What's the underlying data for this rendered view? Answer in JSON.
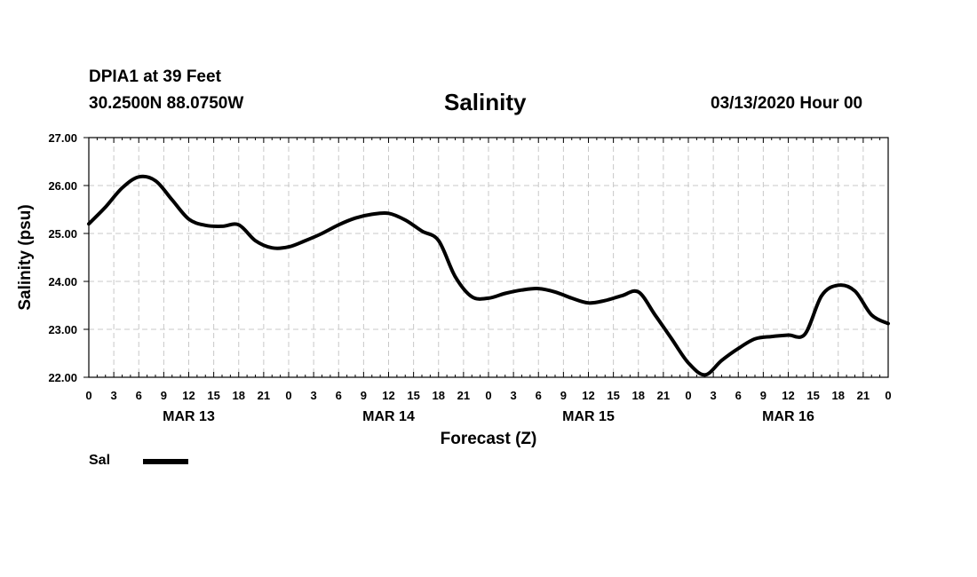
{
  "header": {
    "station": "DPIA1 at 39 Feet",
    "coords": "30.2500N 88.0750W",
    "title": "Salinity",
    "stamp": "03/13/2020 Hour 00"
  },
  "legend": {
    "label": "Sal"
  },
  "colors": {
    "line": "#000000",
    "grid": "#c8c8c8",
    "background": "#ffffff"
  },
  "chart_data": {
    "type": "line",
    "title": "Salinity",
    "xlabel": "Forecast (Z)",
    "ylabel": "Salinity (psu)",
    "ylim": [
      22.0,
      27.0
    ],
    "xlim": [
      0,
      96
    ],
    "y_ticks": [
      "27.00",
      "26.00",
      "25.00",
      "24.00",
      "23.00",
      "22.00"
    ],
    "y_tick_values": [
      27,
      26,
      25,
      24,
      23,
      22
    ],
    "x_tick_labels": [
      "0",
      "3",
      "6",
      "9",
      "12",
      "15",
      "18",
      "21",
      "0",
      "3",
      "6",
      "9",
      "12",
      "15",
      "18",
      "21",
      "0",
      "3",
      "6",
      "9",
      "12",
      "15",
      "18",
      "21",
      "0",
      "3",
      "6",
      "9",
      "12",
      "15",
      "18",
      "21",
      "0"
    ],
    "day_labels": [
      "MAR 13",
      "MAR 14",
      "MAR 15",
      "MAR 16"
    ],
    "grid": true,
    "legend_position": "bottom-left",
    "series": [
      {
        "name": "Sal",
        "x": [
          0,
          2,
          4,
          6,
          8,
          10,
          12,
          14,
          16,
          18,
          20,
          22,
          24,
          26,
          28,
          30,
          32,
          34,
          36,
          38,
          40,
          42,
          44,
          46,
          48,
          50,
          52,
          54,
          56,
          58,
          60,
          62,
          64,
          66,
          68,
          70,
          72,
          74,
          76,
          78,
          80,
          82,
          84,
          86,
          88,
          90,
          92,
          94,
          96
        ],
        "values": [
          25.2,
          25.55,
          25.95,
          26.18,
          26.1,
          25.7,
          25.3,
          25.17,
          25.15,
          25.18,
          24.85,
          24.7,
          24.72,
          24.85,
          25.0,
          25.18,
          25.32,
          25.4,
          25.42,
          25.28,
          25.05,
          24.85,
          24.1,
          23.68,
          23.65,
          23.75,
          23.82,
          23.85,
          23.78,
          23.65,
          23.55,
          23.6,
          23.7,
          23.78,
          23.3,
          22.8,
          22.3,
          22.05,
          22.35,
          22.6,
          22.8,
          22.85,
          22.88,
          22.9,
          23.7,
          23.92,
          23.8,
          23.3,
          23.12
        ]
      }
    ]
  }
}
